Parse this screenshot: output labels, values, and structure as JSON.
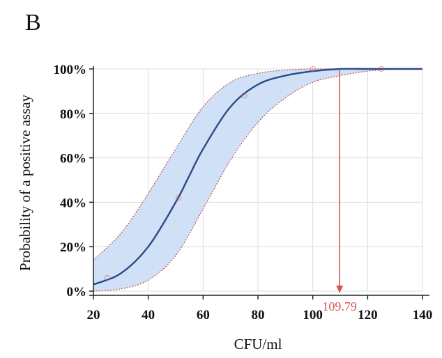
{
  "panel_label": "B",
  "colors": {
    "curve": "#2c4a86",
    "band_fill": "#cfe0f7",
    "band_edge": "#c0504d",
    "marker": "#d9534f",
    "grid": "#dcdcdc",
    "axis": "#222222"
  },
  "chart_data": {
    "type": "line",
    "title": "",
    "xlabel": "CFU/ml",
    "ylabel": "Probability of a positive assay",
    "xlim": [
      20,
      140
    ],
    "ylim": [
      0,
      1
    ],
    "x_ticks": [
      "20",
      "40",
      "60",
      "80",
      "100",
      "120",
      "140"
    ],
    "y_ticks": [
      "0%",
      "20%",
      "40%",
      "60%",
      "80%",
      "100%"
    ],
    "grid": true,
    "series": [
      {
        "role": "fit",
        "x": [
          20,
          30,
          40,
          50,
          55,
          60,
          70,
          80,
          90,
          100,
          110,
          120,
          130,
          140
        ],
        "y": [
          0.03,
          0.08,
          0.2,
          0.4,
          0.52,
          0.64,
          0.83,
          0.93,
          0.97,
          0.99,
          1.0,
          1.0,
          1.0,
          1.0
        ]
      },
      {
        "role": "ci-upper",
        "x": [
          20,
          30,
          40,
          50,
          60,
          70,
          80,
          90,
          100,
          110,
          120,
          130,
          140
        ],
        "y": [
          0.14,
          0.26,
          0.44,
          0.64,
          0.83,
          0.94,
          0.98,
          0.995,
          1.0,
          1.0,
          1.0,
          1.0,
          1.0
        ]
      },
      {
        "role": "ci-lower",
        "x": [
          20,
          30,
          40,
          50,
          60,
          70,
          80,
          90,
          100,
          110,
          120,
          130,
          140
        ],
        "y": [
          0.0,
          0.01,
          0.05,
          0.16,
          0.37,
          0.59,
          0.76,
          0.87,
          0.94,
          0.97,
          0.99,
          1.0,
          1.0
        ]
      }
    ],
    "observed_points": [
      {
        "x": 25,
        "y": 0.06
      },
      {
        "x": 51,
        "y": 0.42
      },
      {
        "x": 75,
        "y": 0.88
      },
      {
        "x": 100,
        "y": 1.0
      },
      {
        "x": 125,
        "y": 1.0
      }
    ],
    "annotation": {
      "x": 109.79,
      "y": 1.0,
      "label": "109.79"
    }
  }
}
